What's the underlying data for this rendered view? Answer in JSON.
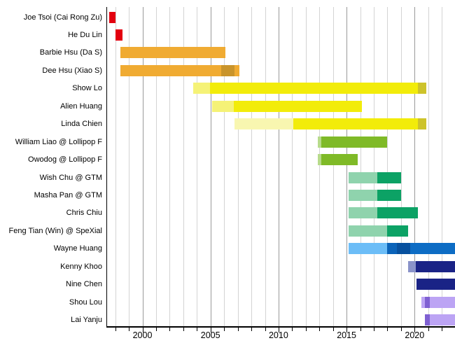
{
  "chart_data": {
    "type": "bar",
    "subtype": "gantt-timeline",
    "title": "",
    "xlabel": "",
    "ylabel": "",
    "grid": "vertical, every year; darker line every 5 years",
    "legend": "none",
    "x_axis": {
      "min": 1997.35,
      "max": 2022.97,
      "major_ticks": [
        2000,
        2005,
        2010,
        2015,
        2020
      ],
      "major_tick_labels": [
        "2000",
        "2005",
        "2010",
        "2015",
        "2020"
      ],
      "minor_tick_start": 1998,
      "minor_tick_end": 2022,
      "minor_tick_step": 1
    },
    "colors": {
      "red": "#E3000F",
      "orange": "#F0AB32",
      "ochre": "#C9942B",
      "pale_yellow": "#F5F277",
      "yellow": "#F2EC0A",
      "olive": "#CDC32B",
      "cream_yellow": "#F8F6B0",
      "pale_green": "#B7DB8B",
      "green": "#7FBA27",
      "mint": "#8FD3AD",
      "emerald": "#0CA265",
      "light_blue": "#6CBDF7",
      "blue": "#0B63B9",
      "dark_blue": "#07509E",
      "bright_blue": "#0D6CC4",
      "slate_blue": "#8A93C9",
      "navy": "#1A2386",
      "lavender": "#BCA4F4",
      "purple": "#7F60D2"
    },
    "rows": [
      {
        "label": "Joe Tsoi (Cai Rong Zu)",
        "segments": [
          {
            "start": 1997.55,
            "end": 1998.02,
            "color": "red"
          }
        ]
      },
      {
        "label": "He Du Lin",
        "segments": [
          {
            "start": 1998.02,
            "end": 1998.55,
            "color": "red"
          }
        ]
      },
      {
        "label": "Barbie Hsu (Da S)",
        "segments": [
          {
            "start": 1998.4,
            "end": 2006.1,
            "color": "orange"
          }
        ]
      },
      {
        "label": "Dee Hsu (Xiao S)",
        "segments": [
          {
            "start": 1998.4,
            "end": 2005.8,
            "color": "orange"
          },
          {
            "start": 2005.8,
            "end": 2006.75,
            "color": "ochre"
          },
          {
            "start": 2006.75,
            "end": 2007.15,
            "color": "orange"
          }
        ]
      },
      {
        "label": "Show Lo",
        "segments": [
          {
            "start": 2003.75,
            "end": 2004.95,
            "color": "pale_yellow"
          },
          {
            "start": 2004.95,
            "end": 2020.25,
            "color": "yellow"
          },
          {
            "start": 2020.25,
            "end": 2020.85,
            "color": "olive"
          }
        ]
      },
      {
        "label": "Alien Huang",
        "segments": [
          {
            "start": 2005.1,
            "end": 2006.7,
            "color": "pale_yellow"
          },
          {
            "start": 2006.7,
            "end": 2016.15,
            "color": "yellow"
          }
        ]
      },
      {
        "label": "Linda Chien",
        "segments": [
          {
            "start": 2006.75,
            "end": 2011.1,
            "color": "cream_yellow"
          },
          {
            "start": 2011.1,
            "end": 2020.25,
            "color": "yellow"
          },
          {
            "start": 2020.25,
            "end": 2020.85,
            "color": "olive"
          }
        ]
      },
      {
        "label": "William Liao @ Lollipop F",
        "segments": [
          {
            "start": 2012.9,
            "end": 2013.15,
            "color": "pale_green"
          },
          {
            "start": 2013.15,
            "end": 2018.0,
            "color": "green"
          }
        ]
      },
      {
        "label": "Owodog @ Lollipop F",
        "segments": [
          {
            "start": 2012.9,
            "end": 2013.15,
            "color": "pale_green"
          },
          {
            "start": 2013.15,
            "end": 2015.8,
            "color": "green"
          }
        ]
      },
      {
        "label": "Wish Chu @ GTM",
        "segments": [
          {
            "start": 2015.15,
            "end": 2017.25,
            "color": "mint"
          },
          {
            "start": 2017.25,
            "end": 2019.0,
            "color": "emerald"
          }
        ]
      },
      {
        "label": "Masha Pan @ GTM",
        "segments": [
          {
            "start": 2015.15,
            "end": 2017.25,
            "color": "mint"
          },
          {
            "start": 2017.25,
            "end": 2019.0,
            "color": "emerald"
          }
        ]
      },
      {
        "label": "Chris Chiu",
        "segments": [
          {
            "start": 2015.15,
            "end": 2017.25,
            "color": "mint"
          },
          {
            "start": 2017.25,
            "end": 2020.25,
            "color": "emerald"
          }
        ]
      },
      {
        "label": "Feng Tian (Win) @ SpeXial",
        "segments": [
          {
            "start": 2015.15,
            "end": 2018.0,
            "color": "mint"
          },
          {
            "start": 2018.0,
            "end": 2019.55,
            "color": "emerald"
          }
        ]
      },
      {
        "label": "Wayne Huang",
        "segments": [
          {
            "start": 2015.15,
            "end": 2018.0,
            "color": "light_blue"
          },
          {
            "start": 2018.0,
            "end": 2018.7,
            "color": "blue"
          },
          {
            "start": 2018.7,
            "end": 2019.7,
            "color": "dark_blue"
          },
          {
            "start": 2019.7,
            "end": 2022.97,
            "color": "bright_blue"
          }
        ]
      },
      {
        "label": "Kenny Khoo",
        "segments": [
          {
            "start": 2019.5,
            "end": 2020.1,
            "color": "slate_blue"
          },
          {
            "start": 2020.1,
            "end": 2022.97,
            "color": "navy"
          }
        ]
      },
      {
        "label": "Nine Chen",
        "segments": [
          {
            "start": 2020.15,
            "end": 2022.97,
            "color": "navy"
          }
        ]
      },
      {
        "label": "Shou Lou",
        "segments": [
          {
            "start": 2020.5,
            "end": 2020.75,
            "color": "lavender"
          },
          {
            "start": 2020.75,
            "end": 2021.1,
            "color": "purple"
          },
          {
            "start": 2021.1,
            "end": 2022.97,
            "color": "lavender"
          }
        ]
      },
      {
        "label": "Lai Yanju",
        "segments": [
          {
            "start": 2020.75,
            "end": 2021.1,
            "color": "purple"
          },
          {
            "start": 2021.1,
            "end": 2022.97,
            "color": "lavender"
          }
        ]
      }
    ]
  }
}
